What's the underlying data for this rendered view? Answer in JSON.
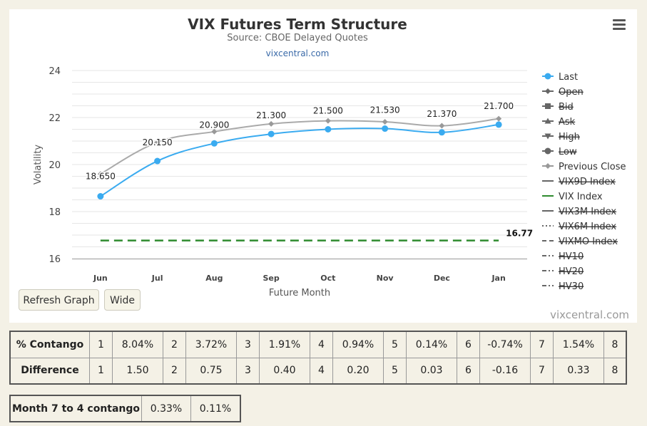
{
  "menu": {
    "icon": "hamburger-menu-icon"
  },
  "buttons": {
    "refresh": "Refresh Graph",
    "wide": "Wide"
  },
  "watermark": "vixcentral.com",
  "chart_data": {
    "type": "line",
    "title": "VIX Futures Term Structure",
    "subtitle": "Source: CBOE Delayed Quotes",
    "link": "vixcentral.com",
    "xlabel": "Future Month",
    "ylabel": "Volatility",
    "categories": [
      "Jun",
      "Jul",
      "Aug",
      "Sep",
      "Oct",
      "Nov",
      "Dec",
      "Jan"
    ],
    "ylim": [
      16,
      24
    ],
    "yticks": [
      16,
      18,
      20,
      22,
      24
    ],
    "grid": true,
    "legend_position": "right",
    "series": [
      {
        "name": "Last",
        "type": "line",
        "color": "#3aabf0",
        "values": [
          18.65,
          20.15,
          20.9,
          21.3,
          21.5,
          21.53,
          21.37,
          21.7
        ],
        "labels": [
          "18.650",
          "20.150",
          "20.900",
          "21.300",
          "21.500",
          "21.530",
          "21.370",
          "21.700"
        ]
      },
      {
        "name": "Previous Close",
        "type": "line",
        "color": "#aaaaaa",
        "values": [
          19.6,
          20.95,
          21.4,
          21.73,
          21.86,
          21.82,
          21.65,
          21.95
        ]
      },
      {
        "name": "VIX Index",
        "type": "dashed",
        "color": "#2e8b2e",
        "values": [
          16.77,
          16.77,
          16.77,
          16.77,
          16.77,
          16.77,
          16.77,
          16.77
        ],
        "end_label": "16.77"
      }
    ],
    "legend": [
      {
        "name": "Last",
        "symbol": "circle",
        "active": true
      },
      {
        "name": "Open",
        "symbol": "diamond",
        "active": false
      },
      {
        "name": "Bid",
        "symbol": "square",
        "active": false
      },
      {
        "name": "Ask",
        "symbol": "triangle",
        "active": false
      },
      {
        "name": "High",
        "symbol": "triangle-down",
        "active": false
      },
      {
        "name": "Low",
        "symbol": "circle",
        "active": false
      },
      {
        "name": "Previous Close",
        "symbol": "diamond-light",
        "active": true
      },
      {
        "name": "VIX9D Index",
        "symbol": "line",
        "active": false
      },
      {
        "name": "VIX Index",
        "symbol": "line-green",
        "active": true
      },
      {
        "name": "VIX3M Index",
        "symbol": "line",
        "active": false
      },
      {
        "name": "VIX6M Index",
        "symbol": "dotted",
        "active": false
      },
      {
        "name": "VIXMO Index",
        "symbol": "dashed",
        "active": false
      },
      {
        "name": "HV10",
        "symbol": "dashdot",
        "active": false
      },
      {
        "name": "HV20",
        "symbol": "dashdot",
        "active": false
      },
      {
        "name": "HV30",
        "symbol": "dashdot",
        "active": false
      }
    ]
  },
  "contango": {
    "rows": [
      {
        "label": "% Contango",
        "cells": [
          [
            "1",
            "8.04%"
          ],
          [
            "2",
            "3.72%"
          ],
          [
            "3",
            "1.91%"
          ],
          [
            "4",
            "0.94%"
          ],
          [
            "5",
            "0.14%"
          ],
          [
            "6",
            "-0.74%"
          ],
          [
            "7",
            "1.54%"
          ]
        ],
        "last": "8"
      },
      {
        "label": "Difference",
        "cells": [
          [
            "1",
            "1.50"
          ],
          [
            "2",
            "0.75"
          ],
          [
            "3",
            "0.40"
          ],
          [
            "4",
            "0.20"
          ],
          [
            "5",
            "0.03"
          ],
          [
            "6",
            "-0.16"
          ],
          [
            "7",
            "0.33"
          ]
        ],
        "last": "8"
      }
    ]
  },
  "month_contango": {
    "label": "Month 7 to 4 contango",
    "values": [
      "0.33%",
      "0.11%"
    ]
  }
}
